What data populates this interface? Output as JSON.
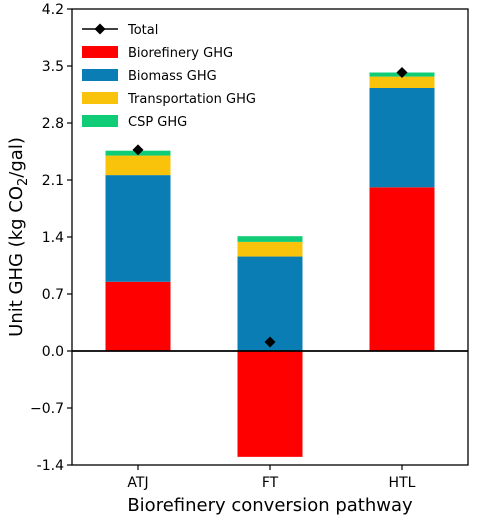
{
  "chart_data": {
    "type": "bar",
    "stacked": true,
    "categories": [
      "ATJ",
      "FT",
      "HTL"
    ],
    "series": [
      {
        "name": "Biorefinery GHG",
        "color": "#ff0000",
        "values": [
          0.85,
          -1.3,
          2.01
        ]
      },
      {
        "name": "Biomass GHG",
        "color": "#0a7db5",
        "values": [
          1.31,
          1.16,
          1.22
        ]
      },
      {
        "name": "Transportation GHG",
        "color": "#f8c30a",
        "values": [
          0.24,
          0.18,
          0.14
        ]
      },
      {
        "name": "CSP GHG",
        "color": "#11cc77",
        "values": [
          0.06,
          0.07,
          0.05
        ]
      }
    ],
    "total": {
      "name": "Total",
      "values": [
        2.47,
        0.11,
        3.42
      ]
    },
    "xlabel": "Biorefinery conversion pathway",
    "ylabel_main": "Unit GHG (kg CO",
    "ylabel_sub": "2",
    "ylabel_end": "/gal)",
    "ylim": [
      -1.4,
      4.2
    ],
    "yticks": [
      "-1.4",
      "−0.7",
      "0.0",
      "0.7",
      "1.4",
      "2.1",
      "2.8",
      "3.5",
      "4.2"
    ],
    "legend_position": "top-left",
    "grid": false
  }
}
